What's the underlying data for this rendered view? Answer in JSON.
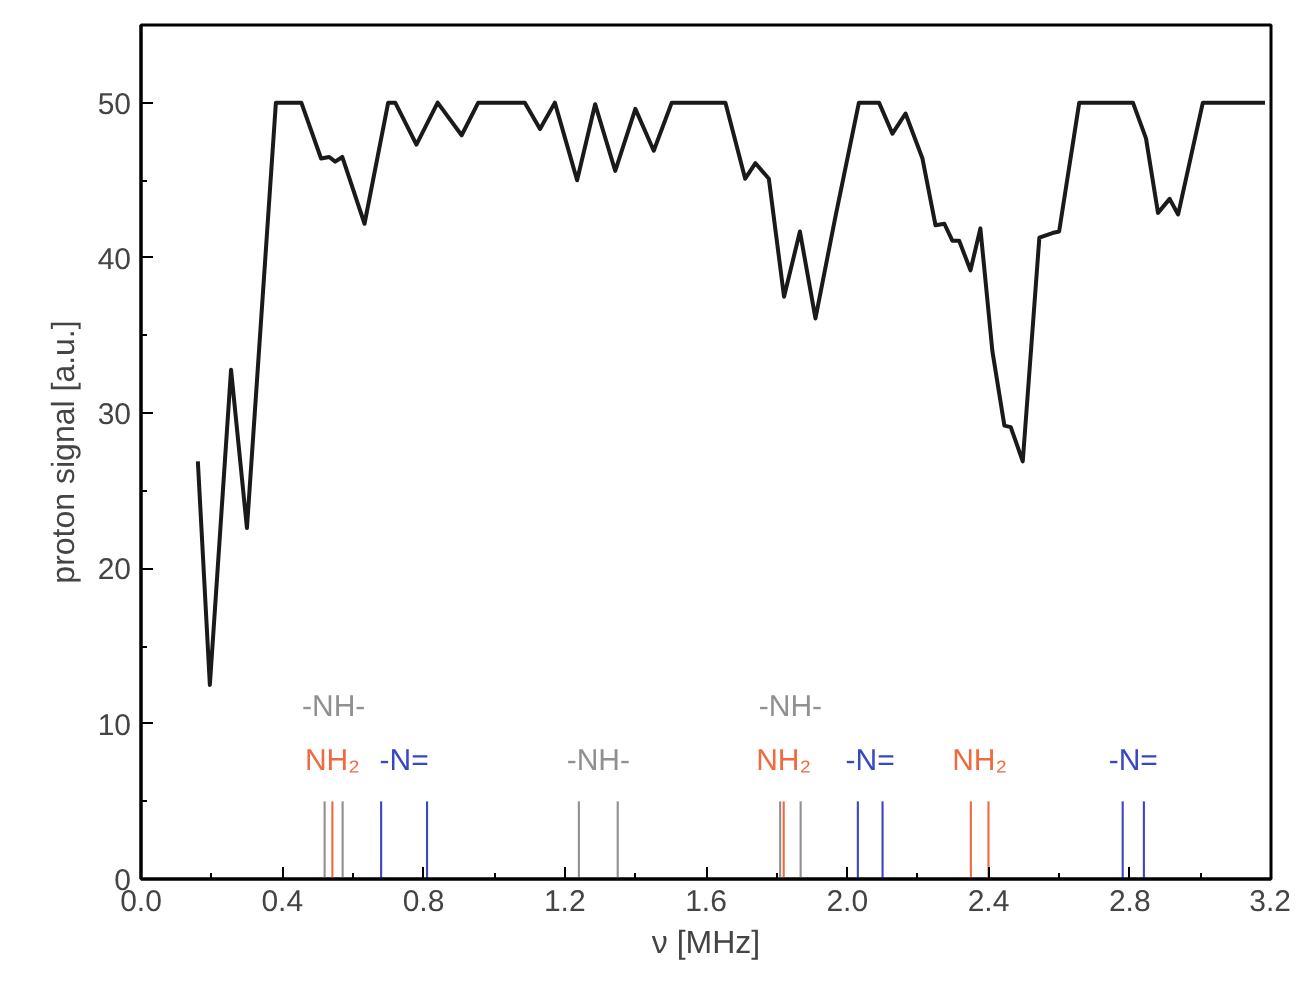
{
  "chart_data": {
    "type": "line",
    "xlabel": "ν [MHz]",
    "ylabel": "proton signal [a.u.]",
    "xlim": [
      0,
      3.2
    ],
    "ylim": [
      0,
      55
    ],
    "xticks": [
      {
        "value": 0,
        "label": "0.0"
      },
      {
        "value": 0.4,
        "label": "0.4"
      },
      {
        "value": 0.8,
        "label": "0.8"
      },
      {
        "value": 1.2,
        "label": "1.2"
      },
      {
        "value": 1.6,
        "label": "1.6"
      },
      {
        "value": 2.0,
        "label": "2.0"
      },
      {
        "value": 2.4,
        "label": "2.4"
      },
      {
        "value": 2.8,
        "label": "2.8"
      },
      {
        "value": 3.2,
        "label": "3.2"
      }
    ],
    "yticks": [
      0,
      10,
      20,
      30,
      40,
      50
    ],
    "grid": false,
    "series": [
      {
        "color": "#1a1a1a",
        "x": [
          0.161,
          0.195,
          0.255,
          0.3,
          0.382,
          0.454,
          0.51,
          0.533,
          0.55,
          0.57,
          0.633,
          0.7,
          0.72,
          0.78,
          0.84,
          0.908,
          0.955,
          1.087,
          1.13,
          1.172,
          1.235,
          1.286,
          1.343,
          1.4,
          1.452,
          1.503,
          1.655,
          1.711,
          1.74,
          1.778,
          1.821,
          1.866,
          1.91,
          1.966,
          2.033,
          2.09,
          2.128,
          2.165,
          2.213,
          2.25,
          2.275,
          2.298,
          2.317,
          2.349,
          2.377,
          2.411,
          2.445,
          2.463,
          2.497,
          2.544,
          2.581,
          2.6,
          2.657,
          2.809,
          2.846,
          2.88,
          2.913,
          2.937,
          3.007,
          3.183
        ],
        "values": [
          26.9,
          12.5,
          32.8,
          22.6,
          50,
          50,
          46.4,
          46.5,
          46.2,
          46.5,
          42.2,
          50,
          50,
          47.3,
          50,
          47.9,
          50,
          50,
          48.3,
          50,
          45.0,
          49.9,
          45.6,
          49.6,
          46.9,
          50,
          50,
          45.1,
          46.1,
          45.1,
          37.5,
          41.7,
          36.1,
          42.6,
          50,
          50,
          48.0,
          49.3,
          46.4,
          42.1,
          42.2,
          41.1,
          41.1,
          39.2,
          41.9,
          34.0,
          29.2,
          29.1,
          26.9,
          41.3,
          41.6,
          41.7,
          50,
          50,
          47.7,
          42.9,
          43.8,
          42.8,
          50,
          50
        ]
      },
      {
        "type": "bar",
        "name": "NH₂",
        "color": "#f06a40",
        "x": [
          0.542
        ],
        "values": [
          5
        ]
      },
      {
        "type": "bar",
        "name": "-NH-",
        "color": "#909090",
        "x": [
          0.52,
          0.571
        ],
        "values": [
          5,
          5
        ]
      },
      {
        "type": "bar",
        "name": "-N=",
        "color": "#3848c0",
        "x": [
          0.68,
          0.81
        ],
        "values": [
          5,
          5
        ]
      },
      {
        "type": "bar",
        "name": "-NH-",
        "color": "#909090",
        "x": [
          1.24,
          1.35
        ],
        "values": [
          5,
          5
        ]
      },
      {
        "type": "bar",
        "name": "NH₂",
        "color": "#f06a40",
        "x": [
          1.82
        ],
        "values": [
          5
        ]
      },
      {
        "type": "bar",
        "name": "-NH-",
        "color": "#909090",
        "x": [
          1.81,
          1.868
        ],
        "values": [
          5,
          5
        ]
      },
      {
        "type": "bar",
        "name": "-N=",
        "color": "#3848c0",
        "x": [
          2.03,
          2.1
        ],
        "values": [
          5,
          5
        ]
      },
      {
        "type": "bar",
        "name": "NH₂",
        "color": "#f06a40",
        "x": [
          2.35,
          2.4
        ],
        "values": [
          5,
          5
        ]
      },
      {
        "type": "bar",
        "name": "-N=",
        "color": "#3848c0",
        "x": [
          2.78,
          2.84
        ],
        "values": [
          5,
          5
        ]
      }
    ]
  }
}
